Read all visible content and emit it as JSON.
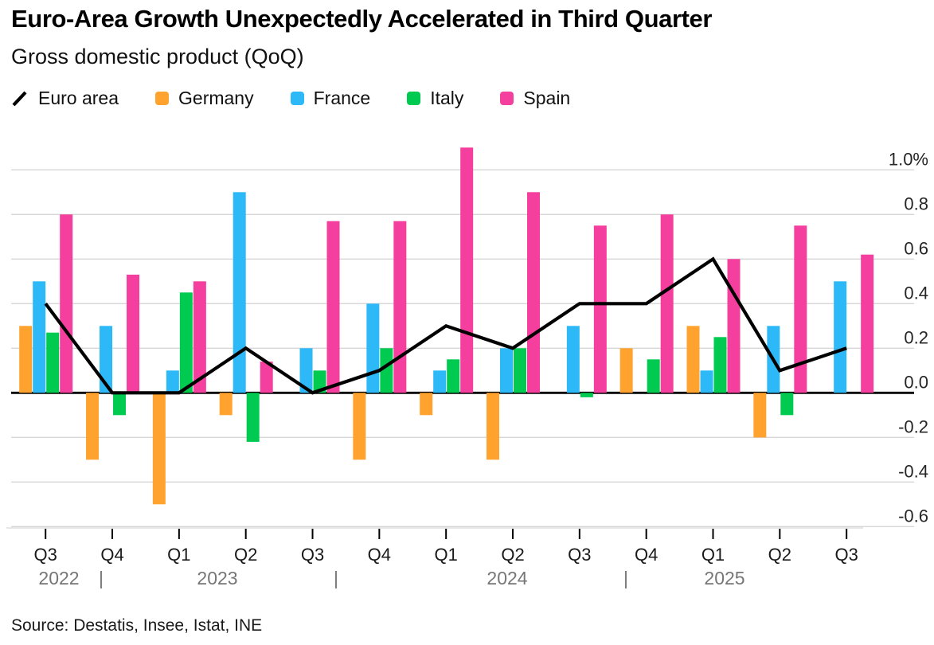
{
  "header": {
    "title": "Euro-Area Growth Unexpectedly Accelerated in Third Quarter",
    "subtitle": "Gross domestic product (QoQ)"
  },
  "legend": {
    "items": [
      {
        "label": "Euro area",
        "swatch": "diagonal-line",
        "color": "#000000"
      },
      {
        "label": "Germany",
        "swatch": "square",
        "color": "#FFA32E"
      },
      {
        "label": "France",
        "swatch": "square",
        "color": "#2DB9F7"
      },
      {
        "label": "Italy",
        "swatch": "square",
        "color": "#00CB50"
      },
      {
        "label": "Spain",
        "swatch": "square",
        "color": "#F43F9E"
      }
    ]
  },
  "chart_data": {
    "type": "bar",
    "title": "Euro-Area Growth Unexpectedly Accelerated in Third Quarter",
    "subtitle": "Gross domestic product (QoQ)",
    "categories": [
      "Q3 2022",
      "Q4 2022",
      "Q1 2023",
      "Q2 2023",
      "Q3 2023",
      "Q4 2023",
      "Q1 2024",
      "Q2 2024",
      "Q3 2024",
      "Q4 2024",
      "Q1 2025",
      "Q2 2025",
      "Q3 2025"
    ],
    "x_tick_labels": [
      "Q3",
      "Q4",
      "Q1",
      "Q2",
      "Q3",
      "Q4",
      "Q1",
      "Q2",
      "Q3",
      "Q4",
      "Q1",
      "Q2",
      "Q3"
    ],
    "year_row": [
      "2022",
      "2023",
      "2024",
      "2025"
    ],
    "year_separator": "|",
    "series": [
      {
        "name": "Euro area",
        "type": "line",
        "color": "#000000",
        "values": [
          0.4,
          0.0,
          0.0,
          0.2,
          0.0,
          0.1,
          0.3,
          0.2,
          0.4,
          0.4,
          0.6,
          0.1,
          0.2
        ]
      },
      {
        "name": "Germany",
        "type": "bar",
        "color": "#FFA32E",
        "values": [
          0.3,
          -0.3,
          -0.5,
          -0.1,
          0.0,
          -0.3,
          -0.1,
          -0.3,
          0.0,
          0.2,
          0.3,
          -0.2,
          0.0
        ]
      },
      {
        "name": "France",
        "type": "bar",
        "color": "#2DB9F7",
        "values": [
          0.5,
          0.3,
          0.1,
          0.9,
          0.2,
          0.4,
          0.1,
          0.2,
          0.3,
          0.0,
          0.1,
          0.3,
          0.5
        ]
      },
      {
        "name": "Italy",
        "type": "bar",
        "color": "#00CB50",
        "values": [
          0.27,
          -0.1,
          0.45,
          -0.22,
          0.1,
          0.2,
          0.15,
          0.2,
          -0.02,
          0.15,
          0.25,
          -0.1,
          0.0
        ]
      },
      {
        "name": "Spain",
        "type": "bar",
        "color": "#F43F9E",
        "values": [
          0.8,
          0.53,
          0.5,
          0.14,
          0.77,
          0.77,
          1.1,
          0.9,
          0.75,
          0.8,
          0.6,
          0.75,
          0.62
        ]
      }
    ],
    "ylim": [
      -0.7,
      1.15
    ],
    "yticks": [
      1.0,
      0.8,
      0.6,
      0.4,
      0.2,
      0.0,
      -0.2,
      -0.4,
      -0.6
    ],
    "ytick_labels": [
      "1.0%",
      "0.8",
      "0.6",
      "0.4",
      "0.2",
      "0.0",
      "-0.2",
      "-0.4",
      "-0.6"
    ],
    "ylabel": "",
    "xlabel": "",
    "grid": true,
    "grid_color": "#D6D6D6",
    "zero_axis_color": "#000000",
    "legend_position": "top"
  },
  "source": "Source: Destatis, Insee, Istat, INE"
}
